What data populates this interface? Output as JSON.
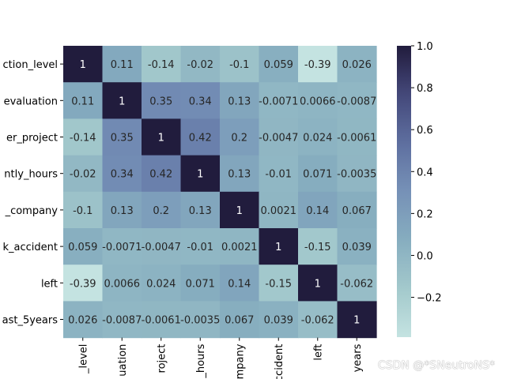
{
  "chart_data": {
    "type": "heatmap",
    "rows": [
      "ction_level",
      "evaluation",
      "er_project",
      "ntly_hours",
      "_company",
      "k_accident",
      "left",
      "ast_5years"
    ],
    "columns": [
      "_level",
      "uation",
      "roject",
      "_hours",
      "mpany",
      "ccident",
      "left",
      "years"
    ],
    "values": [
      [
        1,
        0.11,
        -0.14,
        -0.02,
        -0.1,
        0.059,
        -0.39,
        0.026
      ],
      [
        0.11,
        1,
        0.35,
        0.34,
        0.13,
        -0.0071,
        0.0066,
        -0.0087
      ],
      [
        -0.14,
        0.35,
        1,
        0.42,
        0.2,
        -0.0047,
        0.024,
        -0.0061
      ],
      [
        -0.02,
        0.34,
        0.42,
        1,
        0.13,
        -0.01,
        0.071,
        -0.0035
      ],
      [
        -0.1,
        0.13,
        0.2,
        0.13,
        1,
        0.0021,
        0.14,
        0.067
      ],
      [
        0.059,
        -0.0071,
        -0.0047,
        -0.01,
        0.0021,
        1,
        -0.15,
        0.039
      ],
      [
        -0.39,
        0.0066,
        0.024,
        0.071,
        0.14,
        -0.15,
        1,
        -0.062
      ],
      [
        0.026,
        -0.0087,
        -0.0061,
        -0.0035,
        0.067,
        0.039,
        -0.062,
        1
      ]
    ],
    "labels": [
      [
        "1",
        "0.11",
        "-0.14",
        "-0.02",
        "-0.1",
        "0.059",
        "-0.39",
        "0.026"
      ],
      [
        "0.11",
        "1",
        "0.35",
        "0.34",
        "0.13",
        "-0.0071",
        "0.0066",
        "-0.0087"
      ],
      [
        "-0.14",
        "0.35",
        "1",
        "0.42",
        "0.2",
        "-0.0047",
        "0.024",
        "-0.0061"
      ],
      [
        "-0.02",
        "0.34",
        "0.42",
        "1",
        "0.13",
        "-0.01",
        "0.071",
        "-0.0035"
      ],
      [
        "-0.1",
        "0.13",
        "0.2",
        "0.13",
        "1",
        "0.0021",
        "0.14",
        "0.067"
      ],
      [
        "0.059",
        "-0.0071",
        "-0.0047",
        "-0.01",
        "0.0021",
        "1",
        "-0.15",
        "0.039"
      ],
      [
        "-0.39",
        "0.0066",
        "0.024",
        "0.071",
        "0.14",
        "-0.15",
        "1",
        "-0.062"
      ],
      [
        "0.026",
        "-0.0087",
        "-0.0061",
        "-0.0035",
        "0.067",
        "0.039",
        "-0.062",
        "1"
      ]
    ],
    "vmin": -0.39,
    "vmax": 1.0,
    "colorbar_ticks": [
      1.0,
      0.8,
      0.6,
      0.4,
      0.2,
      0.0,
      -0.2
    ],
    "colorbar_tick_labels": [
      "1.0",
      "0.8",
      "0.6",
      "0.4",
      "0.2",
      "0.0",
      "−0.2"
    ],
    "colormap": [
      "#c4e3e1",
      "#a3c9cc",
      "#86adbf",
      "#7691b7",
      "#5e6fa0",
      "#44487a",
      "#211c3d"
    ]
  },
  "watermark": "CSDN @*SNeutroNS*"
}
